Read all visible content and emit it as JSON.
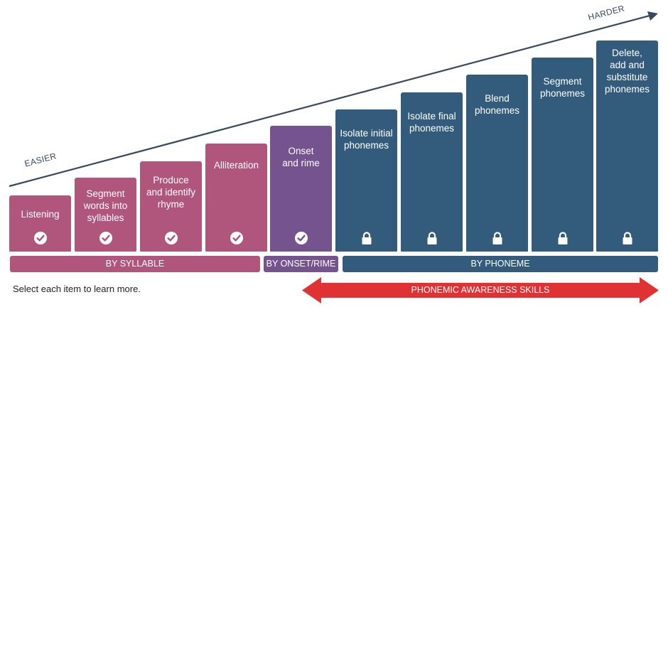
{
  "axis": {
    "easier": "EASIER",
    "harder": "HARDER"
  },
  "colors": {
    "syllable": "#b0557b",
    "onset_rime": "#74538e",
    "phoneme": "#335b7c",
    "trend_line": "#37495e",
    "arrow": "#e03234"
  },
  "skills": [
    {
      "label": "Listening",
      "group": "syllable",
      "state": "check-icon"
    },
    {
      "label": "Segment\nwords into\nsyllables",
      "group": "syllable",
      "state": "check-icon"
    },
    {
      "label": "Produce\nand identify\nrhyme",
      "group": "syllable",
      "state": "check-icon"
    },
    {
      "label": "Alliteration",
      "group": "syllable",
      "state": "check-icon"
    },
    {
      "label": "Onset\nand rime",
      "group": "onset_rime",
      "state": "check-icon"
    },
    {
      "label": "Isolate initial\nphonemes",
      "group": "phoneme",
      "state": "lock-icon"
    },
    {
      "label": "Isolate final\nphonemes",
      "group": "phoneme",
      "state": "lock-icon"
    },
    {
      "label": "Blend\nphonemes",
      "group": "phoneme",
      "state": "lock-icon"
    },
    {
      "label": "Segment\nphonemes",
      "group": "phoneme",
      "state": "lock-icon"
    },
    {
      "label": "Delete,\nadd and\nsubstitute\nphonemes",
      "group": "phoneme",
      "state": "lock-icon"
    }
  ],
  "categories": {
    "syllable": "BY SYLLABLE",
    "onset_rime": "BY ONSET/RIME",
    "phoneme": "BY PHONEME"
  },
  "instruction": "Select each item to learn more.",
  "phonemic_awareness": "PHONEMIC AWARENESS SKILLS"
}
